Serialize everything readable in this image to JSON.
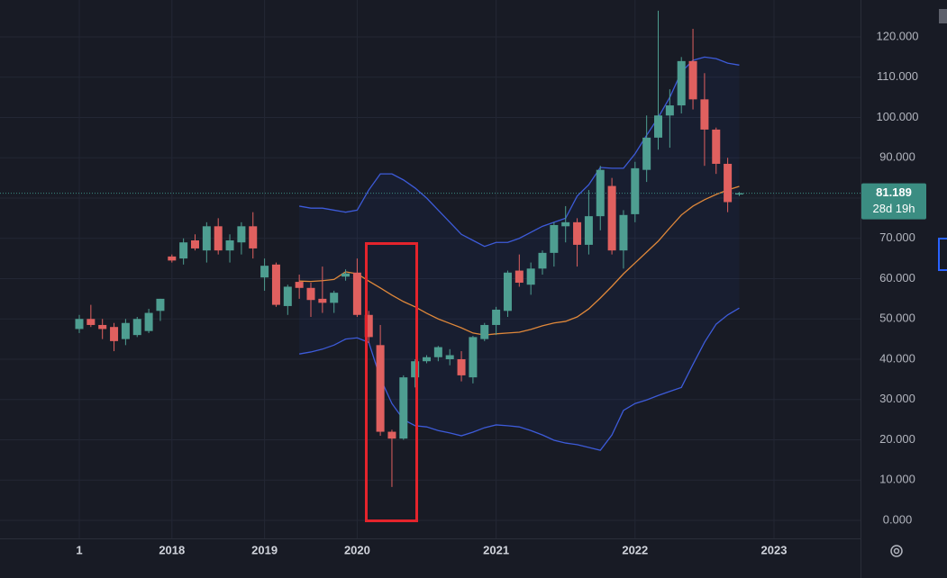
{
  "chart_data": {
    "type": "candlestick",
    "up_color": "#4e9e91",
    "down_color": "#e0605f",
    "grid": true,
    "xlim": [
      -6.848,
      67.47
    ],
    "ylim": [
      -4.469,
      129.162
    ],
    "xticks": [
      {
        "value": 0,
        "label": "1"
      },
      {
        "value": 8,
        "label": "2018"
      },
      {
        "value": 16,
        "label": "2019"
      },
      {
        "value": 24,
        "label": "2020"
      },
      {
        "value": 36,
        "label": "2021"
      },
      {
        "value": 48,
        "label": "2022"
      },
      {
        "value": 60,
        "label": "2023"
      }
    ],
    "yticks": [
      {
        "value": 0,
        "label": "0.000"
      },
      {
        "value": 10,
        "label": "10.000"
      },
      {
        "value": 20,
        "label": "20.000"
      },
      {
        "value": 30,
        "label": "30.000"
      },
      {
        "value": 40,
        "label": "40.000"
      },
      {
        "value": 50,
        "label": "50.000"
      },
      {
        "value": 60,
        "label": "60.000"
      },
      {
        "value": 70,
        "label": "70.000"
      },
      {
        "value": 80,
        "label": "80.000"
      },
      {
        "value": 90,
        "label": "90.000"
      },
      {
        "value": 100,
        "label": "100.000"
      },
      {
        "value": 110,
        "label": "110.000"
      },
      {
        "value": 120,
        "label": "120.000"
      }
    ],
    "x": [
      0,
      1,
      2,
      3,
      4,
      5,
      6,
      7,
      8,
      9,
      10,
      11,
      12,
      13,
      14,
      15,
      16,
      17,
      18,
      19,
      20,
      21,
      22,
      23,
      24,
      25,
      26,
      27,
      28,
      29,
      30,
      31,
      32,
      33,
      34,
      35,
      36,
      37,
      38,
      39,
      40,
      41,
      42,
      43,
      44,
      45,
      46,
      47,
      48,
      49,
      50,
      51,
      52,
      53,
      54,
      55,
      56,
      57
    ],
    "open": [
      47.5,
      50,
      48.5,
      48,
      45,
      46,
      47,
      52,
      65.5,
      65,
      69.5,
      67,
      73,
      67,
      69,
      73,
      60.3,
      63.5,
      53.2,
      59.2,
      57.7,
      55,
      54,
      60.5,
      61.5,
      51,
      43.5,
      22,
      20.3,
      35.5,
      39.5,
      40.5,
      40,
      40,
      35.5,
      45,
      48.5,
      52,
      62,
      58.5,
      62.5,
      66.4,
      73,
      74,
      68.4,
      75.5,
      83,
      67,
      76,
      87,
      95,
      100.5,
      103,
      114,
      104.5,
      97,
      88.5,
      80.9
    ],
    "high": [
      51,
      53.5,
      50,
      49,
      50,
      50.5,
      52.5,
      55,
      66,
      70,
      71,
      74,
      75,
      71,
      74,
      76.5,
      65,
      64,
      58.5,
      61,
      59,
      63,
      57,
      62.3,
      65,
      52,
      48.5,
      22.5,
      36,
      40,
      41,
      43.3,
      42.5,
      42,
      45.8,
      49,
      53,
      62,
      66,
      64,
      67,
      74,
      78,
      75,
      82,
      88,
      85,
      77,
      89,
      100.5,
      126.5,
      107,
      115,
      122,
      111,
      97.5,
      90,
      81.5
    ],
    "low": [
      46.5,
      48,
      45,
      42,
      43.5,
      45.5,
      46.5,
      49.5,
      64,
      63.5,
      67,
      64,
      66,
      64,
      66,
      65,
      57,
      53,
      51,
      55,
      50.5,
      51.5,
      51.5,
      59.5,
      50.5,
      44,
      21,
      8.3,
      20,
      33,
      39,
      39.5,
      38.5,
      34.5,
      34,
      44.5,
      46,
      50.5,
      58,
      56,
      61,
      63,
      69,
      63,
      66,
      72,
      66,
      62.5,
      74,
      84,
      92,
      92.5,
      101,
      102,
      88,
      86,
      76.5,
      80.5
    ],
    "close": [
      50,
      48.5,
      47.5,
      44.5,
      49,
      50,
      51.5,
      55,
      64.5,
      69,
      67.5,
      73,
      67,
      69.5,
      73,
      67.5,
      63.2,
      53.5,
      58,
      57.7,
      54.7,
      54,
      56.5,
      61.3,
      51,
      45.5,
      22,
      20.3,
      35.5,
      39.5,
      40.5,
      43,
      41,
      36,
      45.5,
      48.5,
      52.3,
      61.5,
      59,
      62.5,
      66.4,
      73.3,
      74,
      68.4,
      75.5,
      87,
      67,
      75.8,
      87.4,
      95,
      100.5,
      103,
      114,
      104.5,
      97,
      88.5,
      79,
      81.189
    ],
    "bands": {
      "upper": {
        "color": "#3d5bd9",
        "values": [
          null,
          null,
          null,
          null,
          null,
          null,
          null,
          null,
          null,
          null,
          null,
          null,
          null,
          null,
          null,
          null,
          null,
          null,
          null,
          78,
          77.5,
          77.5,
          77,
          76.5,
          77,
          82,
          86,
          86,
          84.5,
          82.5,
          80,
          77,
          74,
          71,
          69.5,
          68,
          69,
          69,
          70,
          71.5,
          73,
          74,
          75,
          80.5,
          83.3,
          87.6,
          87.4,
          87.4,
          91,
          95.6,
          100,
          105,
          111.3,
          114.2,
          115,
          114.6,
          113.5,
          113
        ]
      },
      "middle": {
        "color": "#e0883a",
        "values": [
          null,
          null,
          null,
          null,
          null,
          null,
          null,
          null,
          null,
          null,
          null,
          null,
          null,
          null,
          null,
          null,
          null,
          null,
          null,
          59.4,
          59.3,
          59.5,
          59.8,
          61.7,
          61.2,
          59.4,
          57.7,
          55.9,
          54.3,
          53,
          51.4,
          50,
          48.9,
          47.8,
          46.5,
          46,
          46.3,
          46.5,
          46.7,
          47.4,
          48.3,
          49,
          49.4,
          50.5,
          52.5,
          55.2,
          58.1,
          61.2,
          63.9,
          66.6,
          69.3,
          72.6,
          75.8,
          78,
          79.6,
          80.9,
          82,
          82.9
        ]
      },
      "lower": {
        "color": "#3d5bd9",
        "values": [
          null,
          null,
          null,
          null,
          null,
          null,
          null,
          null,
          null,
          null,
          null,
          null,
          null,
          null,
          null,
          null,
          null,
          null,
          null,
          41.3,
          41.8,
          42.5,
          43.5,
          45,
          45.3,
          44.2,
          35.3,
          29,
          25,
          23.5,
          23.2,
          22.3,
          21.7,
          21,
          21.9,
          23,
          23.7,
          23.5,
          23.2,
          22.3,
          21.2,
          19.9,
          19.2,
          18.8,
          18.1,
          17.4,
          21.2,
          27.3,
          29,
          29.9,
          31,
          32,
          33,
          38.7,
          44.2,
          48.7,
          51,
          52.7
        ]
      }
    },
    "last_price": 81.189,
    "last_price_color": "#3b8d82",
    "countdown": "28d 19h"
  }
}
